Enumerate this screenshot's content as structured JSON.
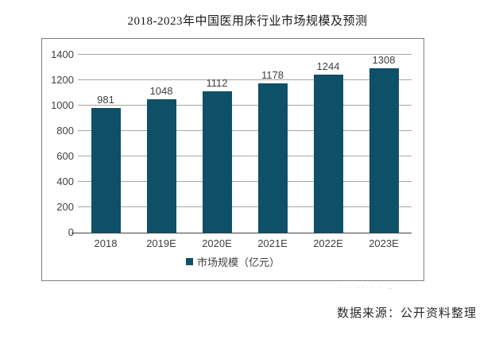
{
  "title": "2018-2023年中国医用床行业市场规模及预测",
  "source_note": "数据来源：公开资料整理",
  "watermark_fragment": "... ..  .      . _",
  "legend": {
    "label": "市场规模（亿元）"
  },
  "colors": {
    "bar": "#0e5068",
    "grid": "#a6a6a6",
    "axis_line": "#404040",
    "frame_border": "#7f7f7f",
    "label_text": "#404040"
  },
  "chart_data": {
    "type": "bar",
    "title": "2018-2023年中国医用床行业市场规模及预测",
    "categories": [
      "2018",
      "2019E",
      "2020E",
      "2021E",
      "2022E",
      "2023E"
    ],
    "values": [
      981,
      1048,
      1112,
      1178,
      1244,
      1308
    ],
    "series_name": "市场规模（亿元）",
    "xlabel": "",
    "ylabel": "",
    "ylim": [
      0,
      1400
    ],
    "yticks": [
      0,
      200,
      400,
      600,
      800,
      1000,
      1200,
      1400
    ],
    "grid": true,
    "legend_position": "bottom",
    "data_labels": true
  }
}
